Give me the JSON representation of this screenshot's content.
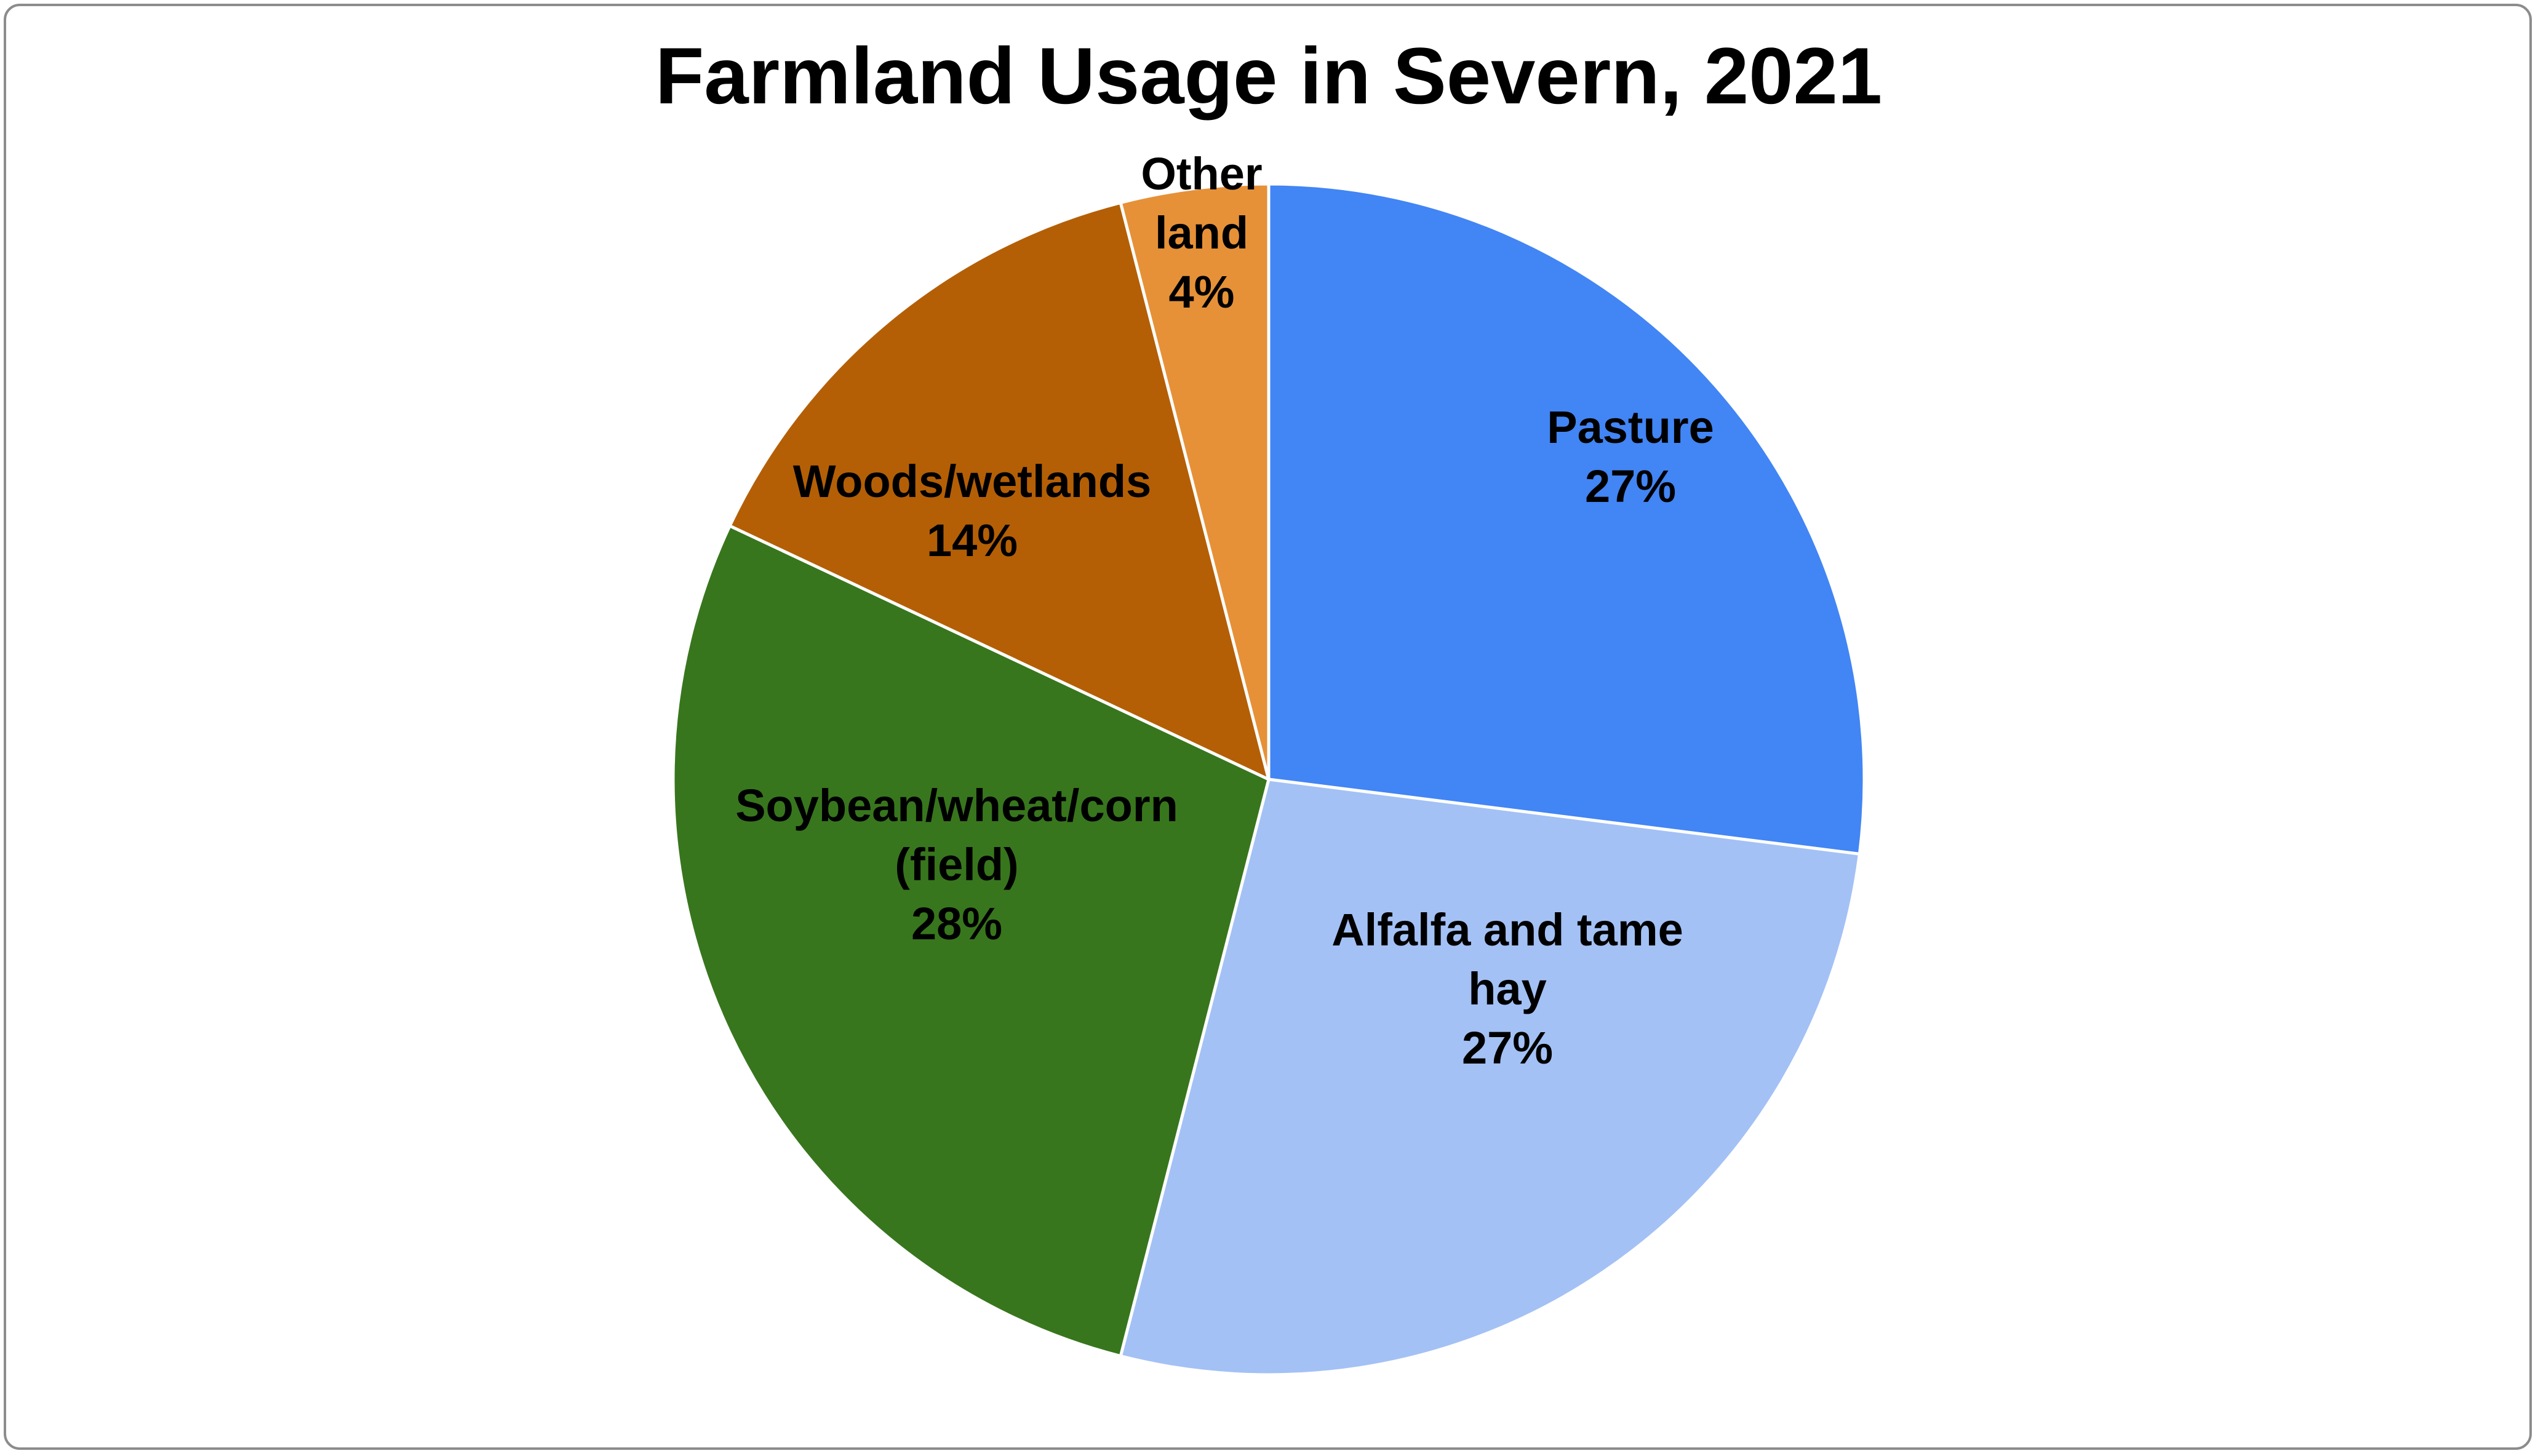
{
  "chart_data": {
    "type": "pie",
    "title": "Farmland Usage in Severn, 2021",
    "start_angle_deg": 0,
    "direction": "clockwise",
    "legend": "none",
    "slices": [
      {
        "label_lines": [
          "Pasture",
          "27%"
        ],
        "value": 27,
        "color": "#4285f4"
      },
      {
        "label_lines": [
          "Alfalfa and tame",
          "hay",
          "27%"
        ],
        "value": 27,
        "color": "#a3c1f5"
      },
      {
        "label_lines": [
          "Soybean/wheat/corn",
          "(field)",
          "28%"
        ],
        "value": 28,
        "color": "#38761d"
      },
      {
        "label_lines": [
          "Woods/wetlands",
          "14%"
        ],
        "value": 14,
        "color": "#b45f06"
      },
      {
        "label_lines": [
          "Other",
          "land",
          "4%"
        ],
        "value": 4,
        "color": "#e69138"
      }
    ]
  }
}
